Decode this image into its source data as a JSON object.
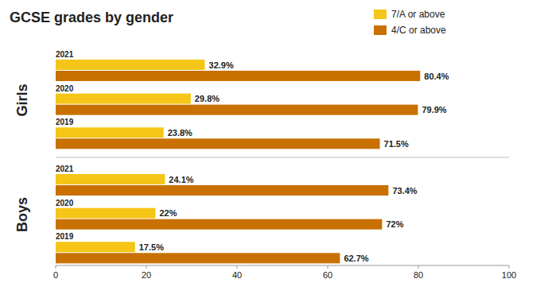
{
  "chart_data": [
    {
      "type": "bar",
      "orientation": "horizontal",
      "title": "GCSE grades by gender",
      "ylabel": "Girls",
      "categories": [
        "2021",
        "2020",
        "2019"
      ],
      "series": [
        {
          "name": "7/A or above",
          "color": "#f5c518",
          "values": [
            32.9,
            29.8,
            23.8
          ],
          "value_labels": [
            "32.9%",
            "29.8%",
            "23.8%"
          ]
        },
        {
          "name": "4/C or above",
          "color": "#c87000",
          "values": [
            80.4,
            79.9,
            71.5
          ],
          "value_labels": [
            "80.4%",
            "79.9%",
            "71.5%"
          ]
        }
      ],
      "xlim": [
        0,
        100
      ],
      "data_labels": true,
      "legend": "upper right",
      "tick_labels": false
    },
    {
      "type": "bar",
      "orientation": "horizontal",
      "ylabel": "Boys",
      "categories": [
        "2021",
        "2020",
        "2019"
      ],
      "series": [
        {
          "color": "#f5c518",
          "values": [
            24.1,
            22.0,
            17.5
          ],
          "value_labels": [
            "24.1%",
            "22%",
            "17.5%"
          ]
        },
        {
          "color": "#c87000",
          "values": [
            73.4,
            72.0,
            62.7
          ],
          "value_labels": [
            "73.4%",
            "72%",
            "62.7%"
          ]
        }
      ],
      "xlim": [
        0,
        100
      ],
      "xticks": [
        0,
        20,
        40,
        60,
        80,
        100
      ],
      "data_labels": true,
      "tick_labels": "x"
    }
  ]
}
